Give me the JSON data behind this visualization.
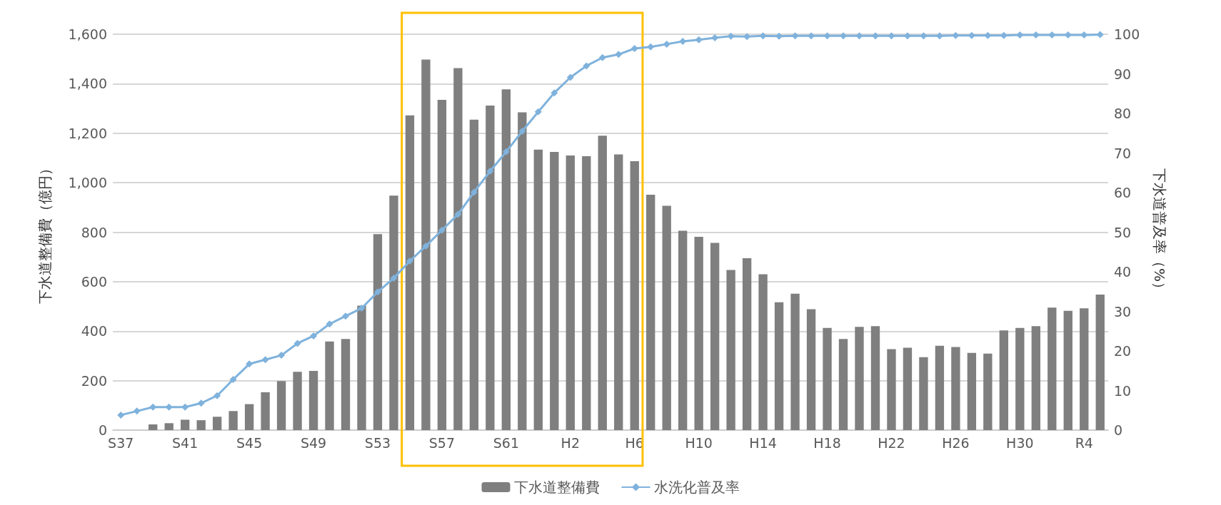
{
  "chart_data": {
    "type": "bar",
    "categories": [
      "S37",
      null,
      null,
      null,
      "S41",
      null,
      null,
      null,
      "S45",
      null,
      null,
      null,
      "S49",
      null,
      null,
      null,
      "S53",
      null,
      null,
      null,
      "S57",
      null,
      null,
      null,
      "S61",
      null,
      null,
      null,
      "H2",
      null,
      null,
      null,
      "H6",
      null,
      null,
      null,
      "H10",
      null,
      null,
      null,
      "H14",
      null,
      null,
      null,
      "H18",
      null,
      null,
      null,
      "H22",
      null,
      null,
      null,
      "H26",
      null,
      null,
      null,
      "H30",
      null,
      null,
      null,
      "R4",
      null
    ],
    "series": [
      {
        "name": "下水道整備費",
        "color": "#7f7f7f",
        "values": [
          null,
          null,
          23,
          28,
          42,
          40,
          54,
          77,
          105,
          153,
          198,
          236,
          239,
          358,
          368,
          503,
          792,
          948,
          1272,
          1498,
          1335,
          1463,
          1255,
          1312,
          1377,
          1284,
          1134,
          1124,
          1110,
          1107,
          1190,
          1114,
          1087,
          951,
          907,
          806,
          781,
          757,
          647,
          695,
          630,
          517,
          551,
          489,
          413,
          368,
          417,
          420,
          327,
          333,
          295,
          341,
          336,
          312,
          309,
          403,
          413,
          420,
          495,
          482,
          492,
          548
        ]
      },
      {
        "name": "水洗化普及率",
        "type": "line",
        "axis": "y2",
        "color": "#7fb2dc",
        "marker": "diamond",
        "values": [
          3.8,
          4.8,
          5.8,
          5.8,
          5.8,
          6.8,
          8.7,
          12.8,
          16.7,
          17.8,
          18.9,
          21.9,
          23.8,
          26.8,
          28.8,
          30.8,
          34.9,
          38.4,
          42.7,
          46.5,
          50.5,
          54.5,
          60.1,
          65.4,
          70.3,
          75.5,
          80.4,
          85.2,
          89.1,
          92.0,
          94.1,
          94.9,
          96.4,
          96.8,
          97.5,
          98.2,
          98.6,
          99.1,
          99.5,
          99.4,
          99.6,
          99.5,
          99.6,
          99.6,
          99.6,
          99.6,
          99.6,
          99.6,
          99.6,
          99.6,
          99.6,
          99.6,
          99.7,
          99.7,
          99.7,
          99.7,
          99.8,
          99.8,
          99.8,
          99.8,
          99.8,
          99.9
        ]
      }
    ],
    "ylabel": "下水道整備費（億円）",
    "y2label": "下水道普及率（%）",
    "ylim": [
      0,
      1600
    ],
    "yticks": [
      0,
      200,
      400,
      600,
      800,
      {
        "value": 1000,
        "label": "1,000"
      },
      {
        "value": 1200,
        "label": "1,200"
      },
      {
        "value": 1400,
        "label": "1,400"
      },
      {
        "value": 1600,
        "label": "1,600"
      }
    ],
    "y2lim": [
      0,
      100
    ],
    "y2ticks": [
      0,
      10,
      20,
      30,
      40,
      50,
      60,
      70,
      80,
      90,
      100
    ],
    "grid": "y",
    "legend": "bottom"
  }
}
